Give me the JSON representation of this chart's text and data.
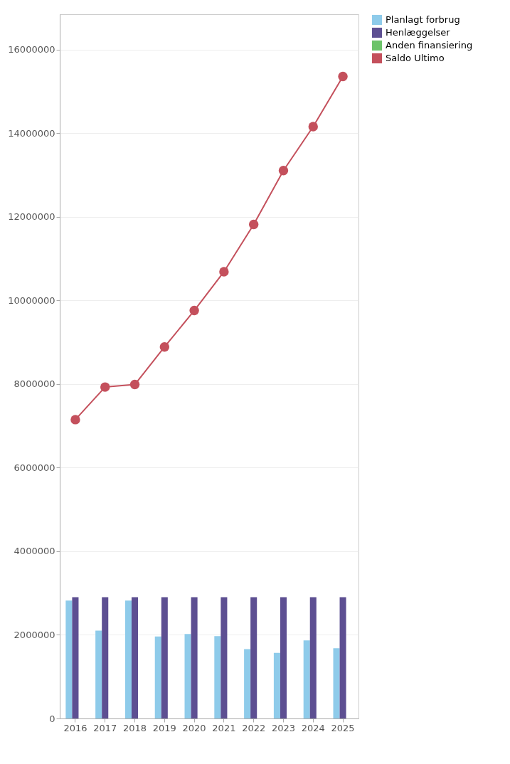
{
  "chart_data": {
    "type": "bar",
    "categories": [
      "2016",
      "2017",
      "2018",
      "2019",
      "2020",
      "2021",
      "2022",
      "2023",
      "2024",
      "2025"
    ],
    "series": [
      {
        "name": "Planlagt forbrug",
        "color": "#8ecbea",
        "values": [
          2820000,
          2100000,
          2820000,
          1960000,
          2020000,
          1970000,
          1660000,
          1570000,
          1870000,
          1680000
        ]
      },
      {
        "name": "Henlæggelser",
        "color": "#5d4f92",
        "values": [
          2900000,
          2900000,
          2900000,
          2900000,
          2900000,
          2900000,
          2900000,
          2900000,
          2900000,
          2900000
        ]
      },
      {
        "name": "Anden finansiering",
        "color": "#6cc36a",
        "values": [
          0,
          0,
          0,
          0,
          0,
          0,
          0,
          0,
          0,
          0
        ]
      },
      {
        "name": "Saldo Ultimo",
        "type": "line",
        "color": "#c4505c",
        "marker": "circle",
        "values": [
          7150000,
          7930000,
          7990000,
          8890000,
          9760000,
          10690000,
          11820000,
          13110000,
          14160000,
          15360000
        ]
      }
    ],
    "ylim": [
      0,
      16850000
    ],
    "yticks": [
      0,
      2000000,
      4000000,
      6000000,
      8000000,
      10000000,
      12000000,
      14000000,
      16000000
    ],
    "grid": "y",
    "legend": "top right"
  }
}
